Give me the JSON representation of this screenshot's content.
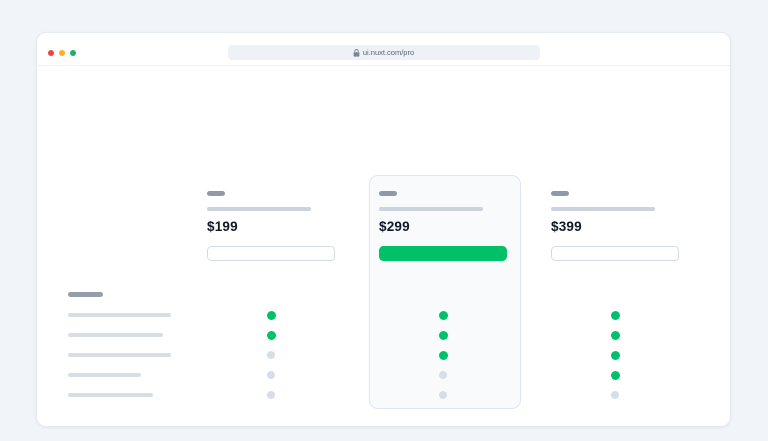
{
  "browser": {
    "url": "ui.nuxt.com/pro",
    "traffic_lights": [
      {
        "name": "close",
        "color": "#f04438"
      },
      {
        "name": "minimize",
        "color": "#fdb022"
      },
      {
        "name": "maximize",
        "color": "#17b26a"
      }
    ]
  },
  "theme": {
    "accent_green": "#00c16a",
    "inactive_gray": "#d8dee6",
    "page_bg": "#f1f4f8",
    "card_bg": "#f8fafc"
  },
  "pricing": {
    "plans": [
      {
        "price": "$199",
        "button_style": "outline",
        "highlighted": false,
        "features": [
          true,
          true,
          false,
          false,
          false
        ]
      },
      {
        "price": "$299",
        "button_style": "solid",
        "highlighted": true,
        "features": [
          true,
          true,
          true,
          false,
          false
        ]
      },
      {
        "price": "$399",
        "button_style": "outline",
        "highlighted": false,
        "features": [
          true,
          true,
          true,
          true,
          false
        ]
      }
    ]
  },
  "sidebar": {
    "header_bar_width": 35,
    "feature_row_widths": [
      103,
      95,
      103,
      73,
      85
    ]
  }
}
